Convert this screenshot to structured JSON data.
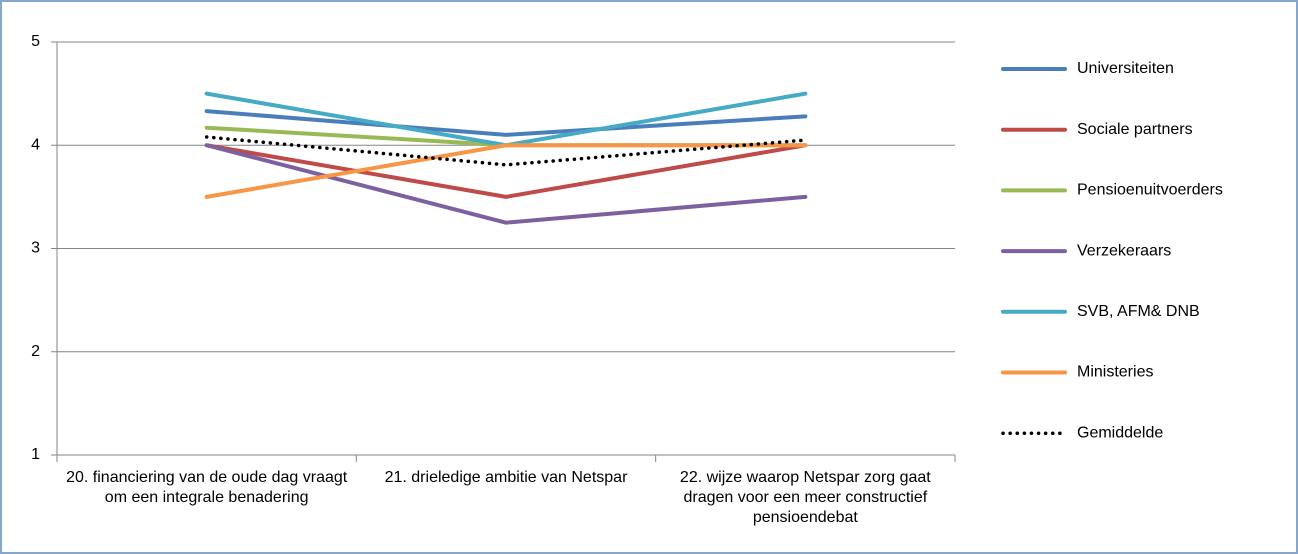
{
  "chart_data": {
    "type": "line",
    "categories": [
      "20. financiering van de oude dag vraagt om een integrale benadering",
      "21. drieledige ambitie van Netspar",
      "22.  wijze waarop Netspar zorg gaat dragen voor een meer constructief pensioendebat"
    ],
    "series": [
      {
        "name": "Universiteiten",
        "color": "#4a7ebb",
        "values": [
          4.33,
          4.1,
          4.28
        ]
      },
      {
        "name": "Sociale partners",
        "color": "#be4b48",
        "values": [
          4.0,
          3.5,
          4.0
        ]
      },
      {
        "name": "Pensioenuitvoerders",
        "color": "#98b954",
        "values": [
          4.17,
          4.0,
          4.0
        ]
      },
      {
        "name": "Verzekeraars",
        "color": "#7d60a0",
        "values": [
          4.0,
          3.25,
          3.5
        ]
      },
      {
        "name": "SVB, AFM& DNB",
        "color": "#46aac5",
        "values": [
          4.5,
          4.0,
          4.5
        ]
      },
      {
        "name": "Ministeries",
        "color": "#f79646",
        "values": [
          3.5,
          4.0,
          4.0
        ]
      },
      {
        "name": "Gemiddelde",
        "color": "#000000",
        "dotted": true,
        "values": [
          4.08,
          3.81,
          4.05
        ]
      }
    ],
    "ylim": [
      1,
      5
    ],
    "yticks": [
      1,
      2,
      3,
      4,
      5
    ],
    "grid": true,
    "legend": "right"
  }
}
